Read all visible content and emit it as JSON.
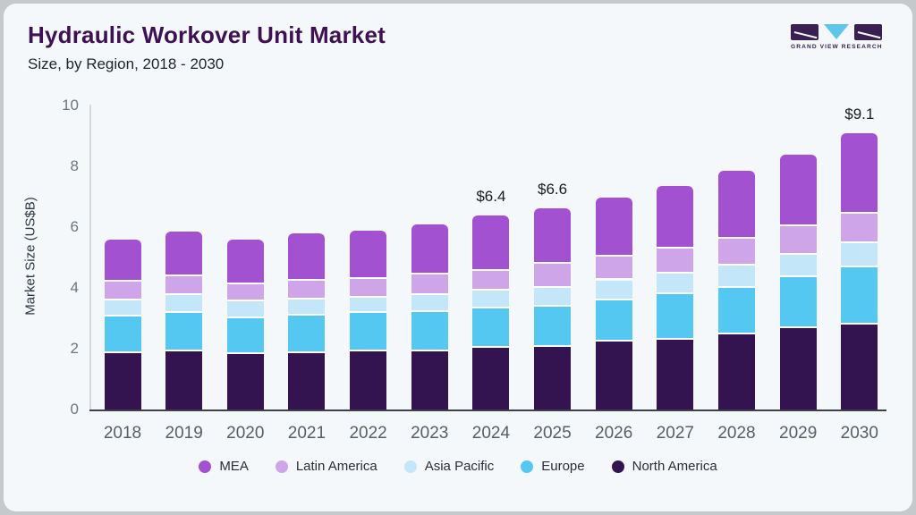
{
  "header": {
    "title": "Hydraulic Workover Unit Market",
    "subtitle": "Size, by Region, 2018 - 2030",
    "logo_text": "GRAND VIEW RESEARCH"
  },
  "chart_data": {
    "type": "bar",
    "stacked": true,
    "title": "Hydraulic Workover Unit Market",
    "subtitle": "Size, by Region, 2018 - 2030",
    "xlabel": "",
    "ylabel": "Market Size (US$B)",
    "ylim": [
      0,
      10
    ],
    "yticks": [
      0,
      2,
      4,
      6,
      8,
      10
    ],
    "grid": false,
    "legend_position": "bottom",
    "categories": [
      "2018",
      "2019",
      "2020",
      "2021",
      "2022",
      "2023",
      "2024",
      "2025",
      "2026",
      "2027",
      "2028",
      "2029",
      "2030"
    ],
    "series": [
      {
        "name": "North America",
        "color": "#331450",
        "values": [
          1.85,
          1.9,
          1.82,
          1.86,
          1.9,
          1.92,
          2.02,
          2.05,
          2.24,
          2.28,
          2.46,
          2.67,
          2.8
        ]
      },
      {
        "name": "Europe",
        "color": "#55c8f2",
        "values": [
          1.2,
          1.28,
          1.18,
          1.22,
          1.28,
          1.28,
          1.3,
          1.32,
          1.35,
          1.51,
          1.55,
          1.68,
          1.87
        ]
      },
      {
        "name": "Asia Pacific",
        "color": "#c3e7f9",
        "values": [
          0.55,
          0.58,
          0.55,
          0.54,
          0.49,
          0.56,
          0.59,
          0.64,
          0.66,
          0.68,
          0.73,
          0.74,
          0.81
        ]
      },
      {
        "name": "Latin America",
        "color": "#cfa5e9",
        "values": [
          0.62,
          0.61,
          0.58,
          0.62,
          0.63,
          0.67,
          0.64,
          0.78,
          0.77,
          0.81,
          0.89,
          0.93,
          0.95
        ]
      },
      {
        "name": "MEA",
        "color": "#a251d1",
        "values": [
          1.38,
          1.47,
          1.45,
          1.56,
          1.57,
          1.67,
          1.83,
          1.84,
          1.95,
          2.06,
          2.22,
          2.37,
          2.65
        ]
      }
    ],
    "totals_approx": [
      5.6,
      5.85,
      5.6,
      5.8,
      5.9,
      6.1,
      6.4,
      6.6,
      7.0,
      7.35,
      7.85,
      8.4,
      9.1
    ],
    "bar_labels": {
      "2024": "$6.4",
      "2025": "$6.6",
      "2030": "$9.1"
    },
    "legend_order": [
      "MEA",
      "Latin America",
      "Asia Pacific",
      "Europe",
      "North America"
    ],
    "colors": {
      "background": "#f4f8fb",
      "frame_border": "#c6c9cb",
      "title": "#3e1152",
      "axis_line": "#3c4148",
      "y_axis_line": "#d4d9dd",
      "tick_text": "#6d757d"
    }
  }
}
